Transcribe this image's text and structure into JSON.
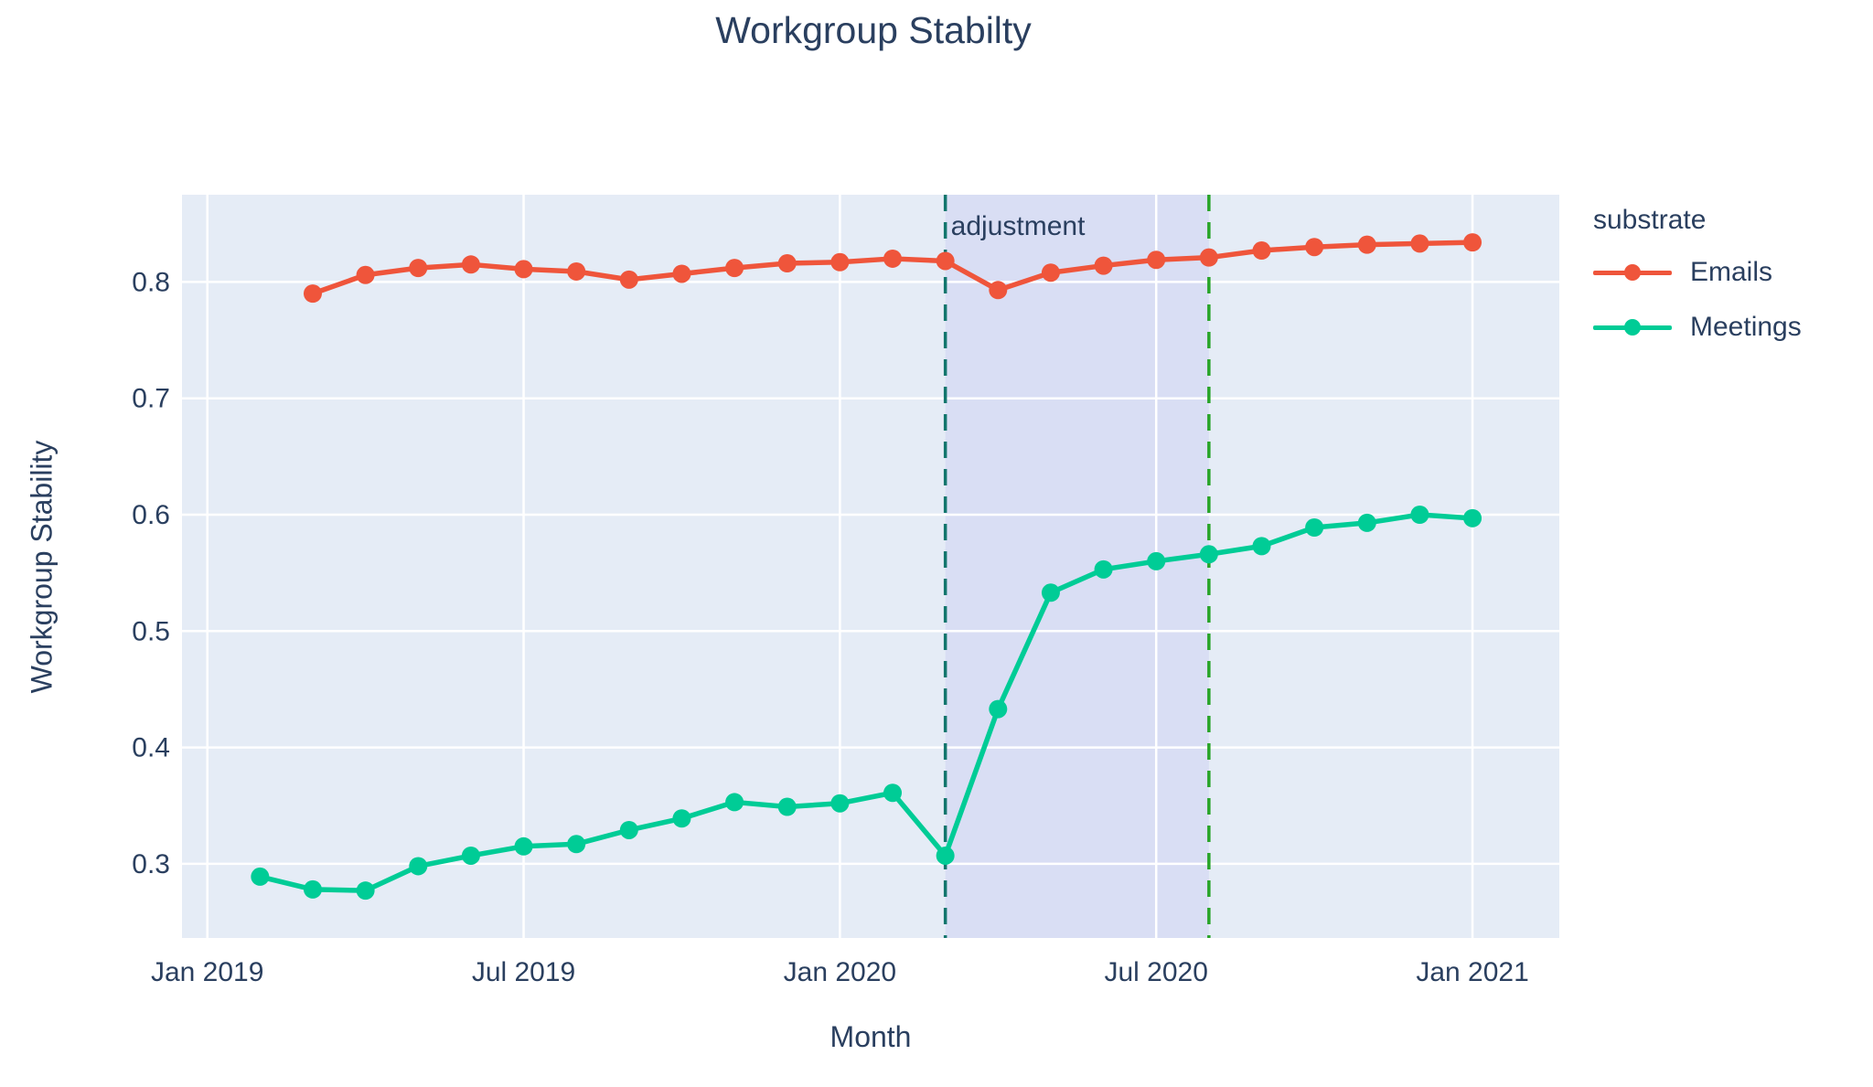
{
  "title": "Workgroup Stabilty",
  "axes": {
    "x": {
      "title": "Month",
      "ticks": [
        {
          "label": "Jan 2019",
          "month": "2019-01"
        },
        {
          "label": "Jul 2019",
          "month": "2019-07"
        },
        {
          "label": "Jan 2020",
          "month": "2020-01"
        },
        {
          "label": "Jul 2020",
          "month": "2020-07"
        },
        {
          "label": "Jan 2021",
          "month": "2021-01"
        }
      ]
    },
    "y": {
      "title": "Workgroup Stability",
      "ticks": [
        "0.3",
        "0.4",
        "0.5",
        "0.6",
        "0.7",
        "0.8"
      ],
      "range": [
        0.236,
        0.875
      ]
    }
  },
  "legend": {
    "title": "substrate",
    "items": [
      {
        "label": "Emails",
        "color": "#ef553b"
      },
      {
        "label": "Meetings",
        "color": "#00cc96"
      }
    ]
  },
  "annotation": {
    "text": "adjustment",
    "month": "2020-03"
  },
  "colors": {
    "text": "#2a3f5f",
    "page_background": "#ffffff",
    "plot_background": "#e5ecf6",
    "grid": "#ffffff",
    "band_fill": "#d9def4",
    "vline_start": "#12766d",
    "vline_end": "#28a428",
    "emails": "#ef553b",
    "meetings": "#00cc96"
  },
  "chart_data": {
    "type": "line",
    "title": "Workgroup Stabilty",
    "xlabel": "Month",
    "ylabel": "Workgroup Stability",
    "legend_title": "substrate",
    "legend_position": "outside-right-top",
    "grid": true,
    "ylim": [
      0.236,
      0.875
    ],
    "x_tick_labels": [
      "Jan 2019",
      "Jul 2019",
      "Jan 2020",
      "Jul 2020",
      "Jan 2021"
    ],
    "y_tick_values": [
      0.3,
      0.4,
      0.5,
      0.6,
      0.7,
      0.8
    ],
    "band": {
      "from": "2020-03",
      "to": "2020-08",
      "label": "adjustment",
      "style": "shaded region between two dashed vertical lines"
    },
    "series": [
      {
        "name": "Emails",
        "color": "#ef553b",
        "marker": "circle",
        "x": [
          "2019-03",
          "2019-04",
          "2019-05",
          "2019-06",
          "2019-07",
          "2019-08",
          "2019-09",
          "2019-10",
          "2019-11",
          "2019-12",
          "2020-01",
          "2020-02",
          "2020-03",
          "2020-04",
          "2020-05",
          "2020-06",
          "2020-07",
          "2020-08",
          "2020-09",
          "2020-10",
          "2020-11",
          "2020-12",
          "2021-01"
        ],
        "y": [
          0.79,
          0.806,
          0.812,
          0.815,
          0.811,
          0.809,
          0.802,
          0.807,
          0.812,
          0.816,
          0.817,
          0.82,
          0.818,
          0.793,
          0.808,
          0.814,
          0.819,
          0.821,
          0.827,
          0.83,
          0.832,
          0.833,
          0.834
        ]
      },
      {
        "name": "Meetings",
        "color": "#00cc96",
        "marker": "circle",
        "x": [
          "2019-02",
          "2019-03",
          "2019-04",
          "2019-05",
          "2019-06",
          "2019-07",
          "2019-08",
          "2019-09",
          "2019-10",
          "2019-11",
          "2019-12",
          "2020-01",
          "2020-02",
          "2020-03",
          "2020-04",
          "2020-05",
          "2020-06",
          "2020-07",
          "2020-08",
          "2020-09",
          "2020-10",
          "2020-11",
          "2020-12",
          "2021-01"
        ],
        "y": [
          0.289,
          0.278,
          0.277,
          0.298,
          0.307,
          0.315,
          0.317,
          0.329,
          0.339,
          0.353,
          0.349,
          0.352,
          0.361,
          0.307,
          0.433,
          0.533,
          0.553,
          0.56,
          0.566,
          0.573,
          0.589,
          0.593,
          0.6,
          0.597
        ]
      }
    ]
  }
}
